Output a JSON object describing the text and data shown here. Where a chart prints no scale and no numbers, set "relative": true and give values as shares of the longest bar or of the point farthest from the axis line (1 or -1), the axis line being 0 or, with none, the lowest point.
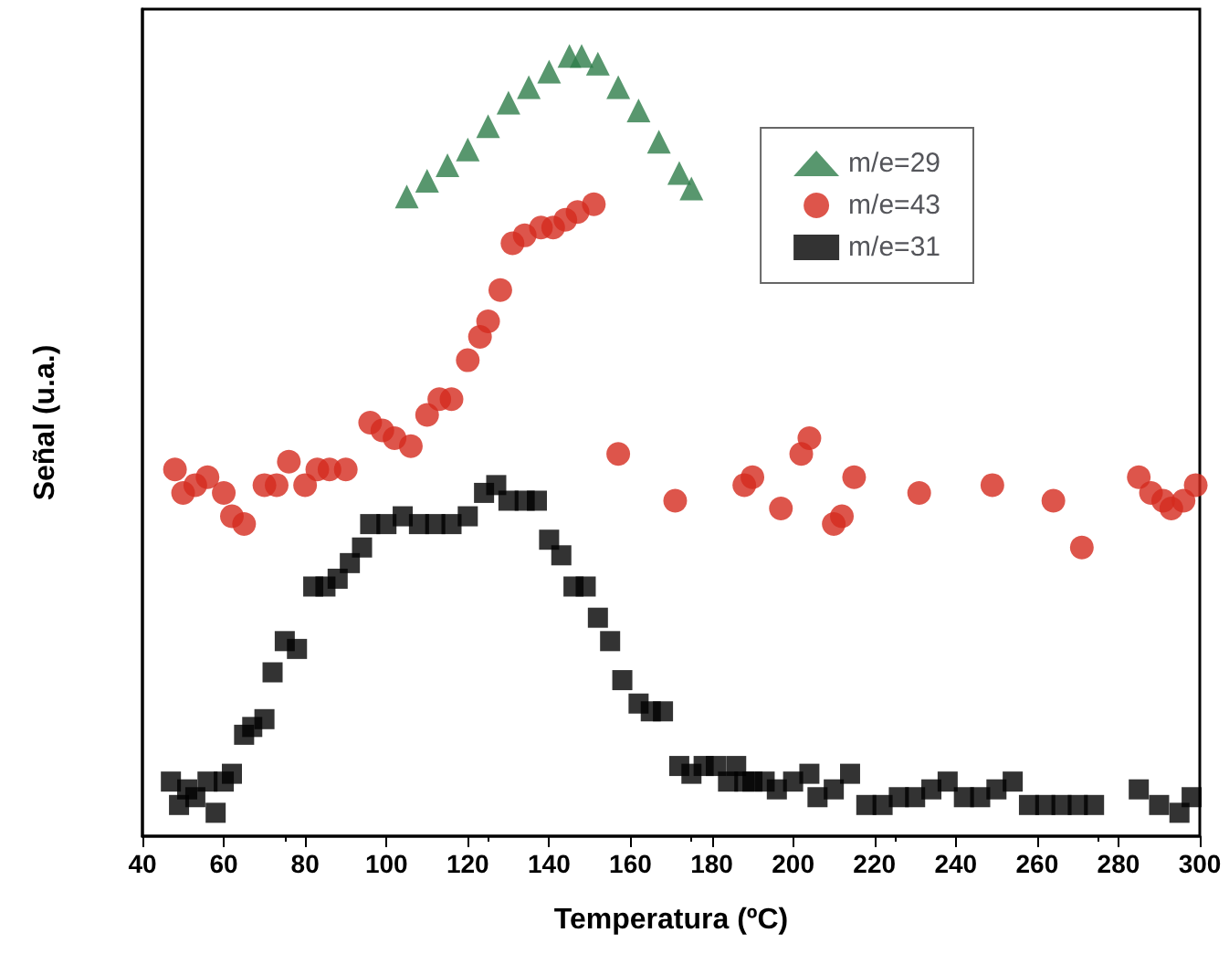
{
  "chart_data": {
    "type": "scatter",
    "relative": true,
    "xlabel": "Temperatura (ºC)",
    "ylabel": "Señal (u.a.)",
    "xlim": [
      40,
      300
    ],
    "xticks": [
      40,
      60,
      80,
      100,
      120,
      140,
      160,
      180,
      200,
      220,
      240,
      260,
      280,
      300
    ],
    "grid": false,
    "legend": "top right",
    "series": [
      {
        "name": "m/e=29",
        "color": "#2e7d4a",
        "marker": "triangle",
        "x": [
          105,
          110,
          115,
          120,
          125,
          130,
          135,
          140,
          145,
          148,
          152,
          157,
          162,
          167,
          172,
          175
        ],
        "values": [
          0.82,
          0.84,
          0.86,
          0.88,
          0.91,
          0.94,
          0.96,
          0.98,
          1.0,
          1.0,
          0.99,
          0.96,
          0.93,
          0.89,
          0.85,
          0.83
        ]
      },
      {
        "name": "m/e=43",
        "color": "#d42a1e",
        "marker": "circle",
        "x": [
          48,
          50,
          53,
          56,
          60,
          62,
          65,
          70,
          73,
          76,
          80,
          83,
          86,
          90,
          96,
          99,
          102,
          106,
          110,
          113,
          116,
          120,
          123,
          125,
          128,
          131,
          134,
          138,
          141,
          144,
          147,
          151,
          157,
          171,
          188,
          190,
          197,
          202,
          204,
          210,
          212,
          215,
          231,
          249,
          264,
          271,
          285,
          288,
          291,
          293,
          296,
          299
        ],
        "values": [
          0.47,
          0.44,
          0.45,
          0.46,
          0.44,
          0.41,
          0.4,
          0.45,
          0.45,
          0.48,
          0.45,
          0.47,
          0.47,
          0.47,
          0.53,
          0.52,
          0.51,
          0.5,
          0.54,
          0.56,
          0.56,
          0.61,
          0.64,
          0.66,
          0.7,
          0.76,
          0.77,
          0.78,
          0.78,
          0.79,
          0.8,
          0.81,
          0.49,
          0.43,
          0.45,
          0.46,
          0.42,
          0.49,
          0.51,
          0.4,
          0.41,
          0.46,
          0.44,
          0.45,
          0.43,
          0.37,
          0.46,
          0.44,
          0.43,
          0.42,
          0.43,
          0.45
        ]
      },
      {
        "name": "m/e=31",
        "color": "#000000",
        "marker": "square",
        "x": [
          47,
          49,
          51,
          53,
          56,
          58,
          60,
          62,
          65,
          67,
          70,
          72,
          75,
          78,
          82,
          85,
          88,
          91,
          94,
          96,
          100,
          104,
          108,
          112,
          116,
          120,
          124,
          127,
          130,
          134,
          137,
          140,
          143,
          146,
          149,
          152,
          155,
          158,
          162,
          165,
          168,
          172,
          175,
          178,
          181,
          184,
          186,
          188,
          190,
          193,
          196,
          200,
          204,
          206,
          210,
          214,
          218,
          222,
          226,
          230,
          234,
          238,
          242,
          246,
          250,
          254,
          258,
          262,
          266,
          270,
          274,
          285,
          290,
          295,
          298
        ],
        "values": [
          0.07,
          0.04,
          0.06,
          0.05,
          0.07,
          0.03,
          0.07,
          0.08,
          0.13,
          0.14,
          0.15,
          0.21,
          0.25,
          0.24,
          0.32,
          0.32,
          0.33,
          0.35,
          0.37,
          0.4,
          0.4,
          0.41,
          0.4,
          0.4,
          0.4,
          0.41,
          0.44,
          0.45,
          0.43,
          0.43,
          0.43,
          0.38,
          0.36,
          0.32,
          0.32,
          0.28,
          0.25,
          0.2,
          0.17,
          0.16,
          0.16,
          0.09,
          0.08,
          0.09,
          0.09,
          0.07,
          0.09,
          0.07,
          0.07,
          0.07,
          0.06,
          0.07,
          0.08,
          0.05,
          0.06,
          0.08,
          0.04,
          0.04,
          0.05,
          0.05,
          0.06,
          0.07,
          0.05,
          0.05,
          0.06,
          0.07,
          0.04,
          0.04,
          0.04,
          0.04,
          0.04,
          0.06,
          0.04,
          0.03,
          0.05
        ]
      }
    ]
  }
}
